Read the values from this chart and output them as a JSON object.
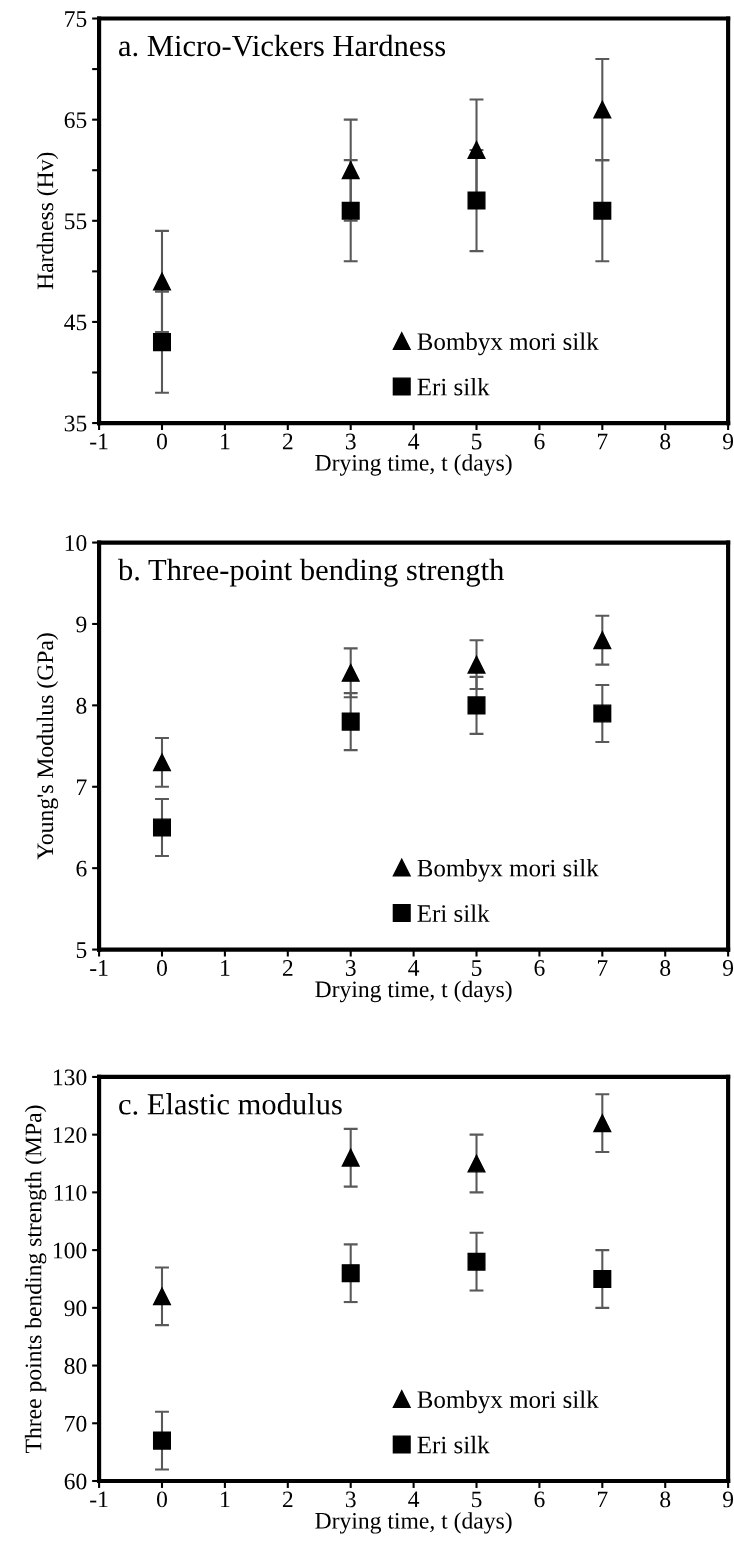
{
  "chart_data": [
    {
      "type": "scatter",
      "title": "a. Micro-Vickers Hardness",
      "xlabel": "Drying time, t (days)",
      "ylabel": "Hardness (Hv)",
      "xlim": [
        -1,
        9
      ],
      "xticks": [
        -1,
        0,
        1,
        2,
        3,
        4,
        5,
        6,
        7,
        8,
        9
      ],
      "ylim": [
        35,
        75
      ],
      "yticks": [
        35,
        {
          "value": 40,
          "label": null
        },
        45,
        {
          "value": 50,
          "label": null
        },
        55,
        {
          "value": 60,
          "label": null
        },
        65,
        {
          "value": 70,
          "label": null
        },
        75
      ],
      "grid": false,
      "legend": "bottom right",
      "series": [
        {
          "name": "Bombyx mori silk",
          "color": "#000000",
          "marker": "triangle",
          "x": [
            0,
            3,
            5,
            7
          ],
          "values": [
            49,
            60,
            62,
            66
          ],
          "errors": [
            5,
            5,
            5,
            5
          ]
        },
        {
          "name": "Eri silk",
          "color": "#000000",
          "marker": "square",
          "x": [
            0,
            3,
            5,
            7
          ],
          "values": [
            43,
            56,
            57,
            56
          ],
          "errors": [
            5,
            5,
            5,
            5
          ]
        }
      ]
    },
    {
      "type": "scatter",
      "title": "b. Three-point bending strength",
      "xlabel": "Drying time, t (days)",
      "ylabel": "Young's Modulus (GPa)",
      "xlim": [
        -1,
        9
      ],
      "xticks": [
        -1,
        0,
        1,
        2,
        3,
        4,
        5,
        6,
        7,
        8,
        9
      ],
      "ylim": [
        5,
        10
      ],
      "yticks": [
        5,
        6,
        7,
        8,
        9,
        10
      ],
      "grid": false,
      "legend": "bottom right",
      "series": [
        {
          "name": "Bombyx mori silk",
          "color": "#000000",
          "marker": "triangle",
          "x": [
            0,
            3,
            5,
            7
          ],
          "values": [
            7.3,
            8.4,
            8.5,
            8.8
          ],
          "errors": [
            0.3,
            0.3,
            0.3,
            0.3
          ]
        },
        {
          "name": "Eri silk",
          "color": "#000000",
          "marker": "square",
          "x": [
            0,
            3,
            5,
            7
          ],
          "values": [
            6.5,
            7.8,
            8.0,
            7.9
          ],
          "errors": [
            0.35,
            0.35,
            0.35,
            0.35
          ]
        }
      ]
    },
    {
      "type": "scatter",
      "title": "c. Elastic modulus",
      "xlabel": "Drying time, t (days)",
      "ylabel": "Three points bending strength (MPa)",
      "xlim": [
        -1,
        9
      ],
      "xticks": [
        -1,
        0,
        1,
        2,
        3,
        4,
        5,
        6,
        7,
        8,
        9
      ],
      "ylim": [
        60,
        130
      ],
      "yticks": [
        60,
        70,
        80,
        90,
        100,
        110,
        120,
        130
      ],
      "grid": false,
      "legend": "bottom right",
      "series": [
        {
          "name": "Bombyx mori silk",
          "color": "#000000",
          "marker": "triangle",
          "x": [
            0,
            3,
            5,
            7
          ],
          "values": [
            92,
            116,
            115,
            122
          ],
          "errors": [
            5,
            5,
            5,
            5
          ]
        },
        {
          "name": "Eri silk",
          "color": "#000000",
          "marker": "square",
          "x": [
            0,
            3,
            5,
            7
          ],
          "values": [
            67,
            96,
            98,
            95
          ],
          "errors": [
            5,
            5,
            5,
            5
          ]
        }
      ]
    }
  ]
}
